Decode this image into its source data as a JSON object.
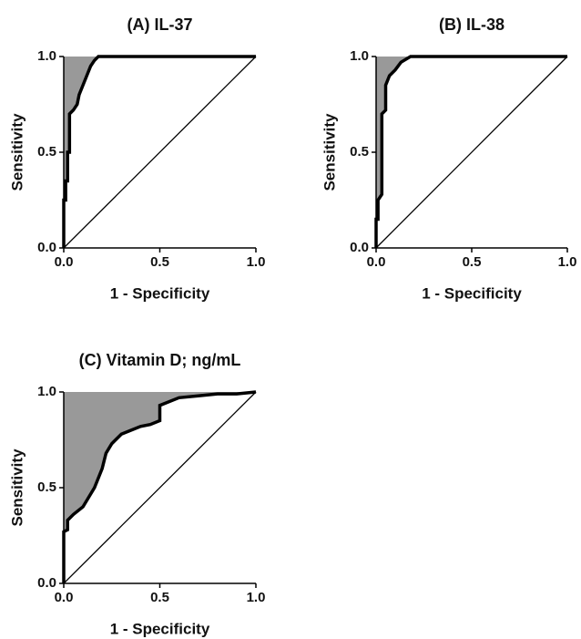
{
  "chart_data": [
    {
      "type": "line",
      "title": "(A) IL-37",
      "xlabel": "1 - Specificity",
      "ylabel": "Sensitivity",
      "x": [
        0,
        0,
        0.01,
        0.01,
        0.02,
        0.02,
        0.03,
        0.03,
        0.05,
        0.07,
        0.08,
        0.1,
        0.12,
        0.14,
        0.16,
        0.18,
        1
      ],
      "values": [
        0,
        0.25,
        0.25,
        0.35,
        0.35,
        0.5,
        0.5,
        0.7,
        0.72,
        0.75,
        0.8,
        0.85,
        0.9,
        0.95,
        0.98,
        1,
        1
      ],
      "color": "#000000",
      "fill_color": "#999999",
      "reference_line": true,
      "xlim": [
        0,
        1
      ],
      "ylim": [
        0,
        1
      ],
      "xticks": [
        {
          "value": 0,
          "label": "0.0"
        },
        0.5,
        {
          "value": 1,
          "label": "1.0"
        }
      ],
      "yticks": [
        {
          "value": 0,
          "label": "0.0"
        },
        0.5,
        {
          "value": 1,
          "label": "1.0"
        }
      ]
    },
    {
      "type": "line",
      "title": "(B) IL-38",
      "xlabel": "1 - Specificity",
      "ylabel": "Sensitivity",
      "x": [
        0,
        0,
        0.01,
        0.01,
        0.03,
        0.03,
        0.05,
        0.05,
        0.07,
        0.1,
        0.13,
        0.18,
        1
      ],
      "values": [
        0,
        0.15,
        0.15,
        0.25,
        0.28,
        0.7,
        0.72,
        0.85,
        0.9,
        0.93,
        0.97,
        1,
        1
      ],
      "color": "#000000",
      "fill_color": "#999999",
      "reference_line": true,
      "xlim": [
        0,
        1
      ],
      "ylim": [
        0,
        1
      ],
      "xticks": [
        {
          "value": 0,
          "label": "0.0"
        },
        0.5,
        {
          "value": 1,
          "label": "1.0"
        }
      ],
      "yticks": [
        {
          "value": 0,
          "label": "0.0"
        },
        0.5,
        {
          "value": 1,
          "label": "1.0"
        }
      ]
    },
    {
      "type": "line",
      "title": "(C) Vitamin D; ng/mL",
      "xlabel": "1 - Specificity",
      "ylabel": "Sensitivity",
      "x": [
        0,
        0,
        0.02,
        0.02,
        0.05,
        0.1,
        0.13,
        0.16,
        0.18,
        0.2,
        0.22,
        0.25,
        0.3,
        0.35,
        0.4,
        0.45,
        0.5,
        0.5,
        0.6,
        0.7,
        0.8,
        0.9,
        1
      ],
      "values": [
        0,
        0.27,
        0.28,
        0.33,
        0.36,
        0.4,
        0.45,
        0.5,
        0.55,
        0.6,
        0.68,
        0.73,
        0.78,
        0.8,
        0.82,
        0.83,
        0.85,
        0.93,
        0.97,
        0.98,
        0.99,
        0.99,
        1
      ],
      "color": "#000000",
      "fill_color": "#999999",
      "reference_line": true,
      "xlim": [
        0,
        1
      ],
      "ylim": [
        0,
        1
      ],
      "xticks": [
        {
          "value": 0,
          "label": "0.0"
        },
        0.5,
        {
          "value": 1,
          "label": "1.0"
        }
      ],
      "yticks": [
        {
          "value": 0,
          "label": "0.0"
        },
        0.5,
        {
          "value": 1,
          "label": "1.0"
        }
      ]
    }
  ]
}
